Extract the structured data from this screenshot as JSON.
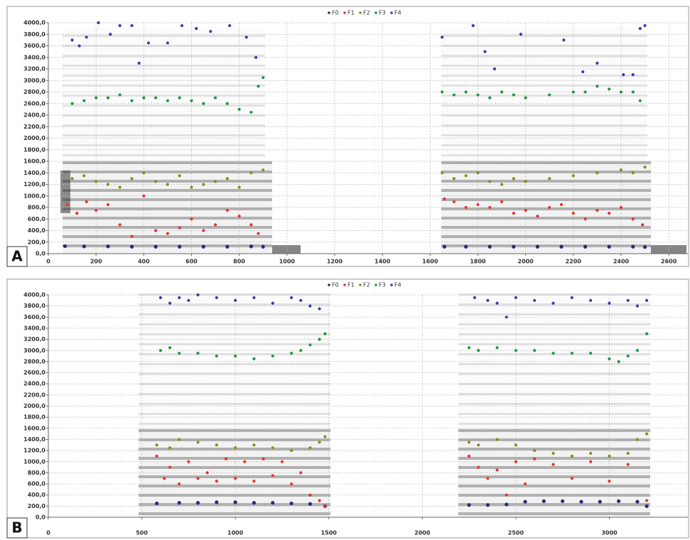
{
  "chart_data": [
    {
      "type": "scatter",
      "panel_label": "A",
      "xlim": [
        0,
        2680
      ],
      "ylim": [
        0,
        4000
      ],
      "xticks": [
        0,
        200,
        400,
        600,
        800,
        1000,
        1200,
        1400,
        1600,
        1800,
        2000,
        2200,
        2400,
        2600
      ],
      "yticks": [
        {
          "value": 0,
          "label": "0,0"
        },
        {
          "value": 200,
          "label": "200,0"
        },
        {
          "value": 400,
          "label": "400,0"
        },
        {
          "value": 600,
          "label": "600,0"
        },
        {
          "value": 800,
          "label": "800,0"
        },
        {
          "value": 1000,
          "label": "1000,0"
        },
        {
          "value": 1200,
          "label": "1200,0"
        },
        {
          "value": 1400,
          "label": "1400,0"
        },
        {
          "value": 1600,
          "label": "1600,0"
        },
        {
          "value": 1800,
          "label": "1800,0"
        },
        {
          "value": 2000,
          "label": "2000,0"
        },
        {
          "value": 2200,
          "label": "2200,0"
        },
        {
          "value": 2400,
          "label": "2400,0"
        },
        {
          "value": 2600,
          "label": "2600,0"
        },
        {
          "value": 2800,
          "label": "2800,0"
        },
        {
          "value": 3000,
          "label": "3000,0"
        },
        {
          "value": 3200,
          "label": "3200,0"
        },
        {
          "value": 3400,
          "label": "3400,0"
        },
        {
          "value": 3600,
          "label": "3600,0"
        },
        {
          "value": 3800,
          "label": "3800,0"
        },
        {
          "value": 4000,
          "label": "4000,0"
        }
      ],
      "grid": true,
      "series": [
        {
          "name": "F0",
          "color": "#232c7c",
          "x": [
            70,
            150,
            250,
            350,
            450,
            550,
            650,
            750,
            850,
            900,
            1660,
            1750,
            1850,
            1950,
            2050,
            2150,
            2250,
            2350,
            2450,
            2500
          ],
          "values": [
            130,
            125,
            125,
            120,
            120,
            120,
            120,
            120,
            125,
            120,
            120,
            120,
            120,
            120,
            120,
            120,
            120,
            120,
            120,
            115
          ]
        },
        {
          "name": "F1",
          "color": "#e8342c",
          "x": [
            80,
            120,
            160,
            200,
            250,
            300,
            350,
            400,
            450,
            500,
            550,
            600,
            650,
            700,
            750,
            800,
            850,
            880,
            1660,
            1700,
            1750,
            1800,
            1850,
            1900,
            1950,
            2000,
            2050,
            2100,
            2150,
            2200,
            2250,
            2300,
            2350,
            2400,
            2450,
            2490
          ],
          "values": [
            850,
            700,
            900,
            750,
            850,
            500,
            300,
            1000,
            400,
            350,
            450,
            600,
            400,
            500,
            750,
            650,
            500,
            350,
            950,
            900,
            800,
            850,
            800,
            900,
            700,
            750,
            650,
            800,
            850,
            700,
            600,
            750,
            700,
            800,
            600,
            500
          ]
        },
        {
          "name": "F2",
          "color": "#8c8c16",
          "x": [
            100,
            150,
            200,
            250,
            300,
            350,
            400,
            450,
            500,
            550,
            600,
            650,
            700,
            750,
            800,
            850,
            900,
            1650,
            1700,
            1750,
            1800,
            1850,
            1900,
            1950,
            2000,
            2100,
            2200,
            2300,
            2400,
            2450,
            2500
          ],
          "values": [
            1300,
            1350,
            1250,
            1200,
            1150,
            1300,
            1400,
            1250,
            1200,
            1350,
            1150,
            1200,
            1250,
            1300,
            1150,
            1400,
            1450,
            1400,
            1300,
            1350,
            1400,
            1250,
            1200,
            1300,
            1250,
            1300,
            1350,
            1400,
            1450,
            1400,
            1500
          ]
        },
        {
          "name": "F3",
          "color": "#1e9a3c",
          "x": [
            100,
            150,
            200,
            250,
            300,
            350,
            400,
            450,
            500,
            550,
            600,
            650,
            700,
            750,
            800,
            850,
            880,
            900,
            1650,
            1700,
            1750,
            1800,
            1850,
            1900,
            1950,
            2000,
            2100,
            2200,
            2250,
            2300,
            2350,
            2400,
            2450,
            2480
          ],
          "values": [
            2600,
            2650,
            2700,
            2700,
            2750,
            2650,
            2700,
            2700,
            2650,
            2700,
            2650,
            2600,
            2700,
            2600,
            2500,
            2450,
            2900,
            3050,
            2800,
            2750,
            2800,
            2750,
            2700,
            2800,
            2750,
            2700,
            2750,
            2800,
            2800,
            2900,
            2850,
            2800,
            2800,
            2650
          ]
        },
        {
          "name": "F4",
          "color": "#3a3aae",
          "x": [
            100,
            130,
            160,
            210,
            260,
            300,
            350,
            380,
            420,
            500,
            560,
            620,
            680,
            760,
            830,
            870,
            1650,
            1780,
            1830,
            1870,
            1980,
            2160,
            2240,
            2300,
            2410,
            2450,
            2480,
            2500
          ],
          "values": [
            3700,
            3600,
            3750,
            4000,
            3800,
            3950,
            3950,
            3300,
            3650,
            3650,
            3950,
            3900,
            3850,
            3950,
            3750,
            3400,
            3750,
            3950,
            3500,
            3200,
            3800,
            3700,
            3150,
            3300,
            3100,
            3100,
            3900,
            3950
          ]
        }
      ]
    },
    {
      "type": "scatter",
      "panel_label": "B",
      "xlim": [
        0,
        3420
      ],
      "ylim": [
        0,
        4000
      ],
      "xticks": [
        0,
        500,
        1000,
        1500,
        2000,
        2500,
        3000
      ],
      "yticks": [
        {
          "value": 0,
          "label": "0,0"
        },
        {
          "value": 200,
          "label": "200,0"
        },
        {
          "value": 400,
          "label": "400,0"
        },
        {
          "value": 600,
          "label": "600,0"
        },
        {
          "value": 800,
          "label": "800,0"
        },
        {
          "value": 1000,
          "label": "1000,0"
        },
        {
          "value": 1200,
          "label": "1200,0"
        },
        {
          "value": 1400,
          "label": "1400,0"
        },
        {
          "value": 1600,
          "label": "1600,0"
        },
        {
          "value": 1800,
          "label": "1800,0"
        },
        {
          "value": 2000,
          "label": "2000,0"
        },
        {
          "value": 2200,
          "label": "2200,0"
        },
        {
          "value": 2400,
          "label": "2400,0"
        },
        {
          "value": 2600,
          "label": "2600,0"
        },
        {
          "value": 2800,
          "label": "2800,0"
        },
        {
          "value": 3000,
          "label": "3000,0"
        },
        {
          "value": 3200,
          "label": "3200,0"
        },
        {
          "value": 3400,
          "label": "3400,0"
        },
        {
          "value": 3600,
          "label": "3600,0"
        },
        {
          "value": 3800,
          "label": "3800,0"
        },
        {
          "value": 4000,
          "label": "4000,0"
        }
      ],
      "grid": true,
      "series": [
        {
          "name": "F0",
          "color": "#232c7c",
          "x": [
            580,
            700,
            800,
            900,
            1000,
            1100,
            1200,
            1300,
            1400,
            1480,
            2250,
            2350,
            2450,
            2550,
            2650,
            2750,
            2850,
            2950,
            3050,
            3150,
            3200
          ],
          "values": [
            250,
            260,
            260,
            270,
            270,
            260,
            260,
            250,
            240,
            200,
            220,
            220,
            230,
            280,
            290,
            290,
            280,
            280,
            290,
            280,
            200
          ]
        },
        {
          "name": "F1",
          "color": "#e8342c",
          "x": [
            580,
            620,
            650,
            700,
            750,
            800,
            850,
            900,
            950,
            1000,
            1050,
            1100,
            1150,
            1200,
            1250,
            1300,
            1350,
            1400,
            1450,
            1480,
            2250,
            2300,
            2350,
            2400,
            2450,
            2500,
            2550,
            2600,
            2700,
            2800,
            2900,
            3000,
            3100,
            3200
          ],
          "values": [
            1100,
            700,
            900,
            600,
            1000,
            700,
            800,
            650,
            1050,
            700,
            1000,
            650,
            1050,
            750,
            1000,
            600,
            800,
            400,
            300,
            200,
            1100,
            900,
            700,
            850,
            400,
            1000,
            600,
            1050,
            950,
            700,
            1000,
            650,
            950,
            300
          ]
        },
        {
          "name": "F2",
          "color": "#8c8c16",
          "x": [
            580,
            650,
            700,
            800,
            900,
            1000,
            1100,
            1200,
            1300,
            1400,
            1450,
            1480,
            2250,
            2300,
            2400,
            2500,
            2600,
            2700,
            2800,
            2900,
            3000,
            3100,
            3150,
            3200
          ],
          "values": [
            1300,
            1250,
            1400,
            1350,
            1300,
            1250,
            1300,
            1250,
            1200,
            1250,
            1350,
            1450,
            1350,
            1300,
            1400,
            1300,
            1200,
            1150,
            1100,
            1150,
            1100,
            1150,
            1400,
            1500
          ]
        },
        {
          "name": "F3",
          "color": "#1e9a3c",
          "x": [
            600,
            650,
            700,
            800,
            900,
            1000,
            1100,
            1200,
            1300,
            1350,
            1400,
            1450,
            1480,
            2250,
            2300,
            2400,
            2500,
            2600,
            2700,
            2800,
            2900,
            3000,
            3050,
            3100,
            3150,
            3200
          ],
          "values": [
            3000,
            3050,
            2950,
            2950,
            2900,
            2900,
            2850,
            2900,
            2950,
            3000,
            3100,
            3200,
            3300,
            3050,
            3000,
            3050,
            3000,
            3000,
            2950,
            2950,
            2950,
            2850,
            2800,
            2900,
            3000,
            3300
          ]
        },
        {
          "name": "F4",
          "color": "#3a3aae",
          "x": [
            600,
            650,
            700,
            750,
            800,
            900,
            1000,
            1100,
            1200,
            1300,
            1350,
            1400,
            1450,
            2280,
            2350,
            2400,
            2450,
            2500,
            2600,
            2700,
            2800,
            2900,
            3000,
            3100,
            3150,
            3200
          ],
          "values": [
            3950,
            3850,
            3950,
            3900,
            4000,
            3950,
            3900,
            3950,
            3850,
            3950,
            3900,
            3800,
            3750,
            3950,
            3900,
            3850,
            3600,
            3950,
            3900,
            3850,
            3950,
            3900,
            3850,
            3900,
            3800,
            3900
          ]
        }
      ]
    }
  ]
}
